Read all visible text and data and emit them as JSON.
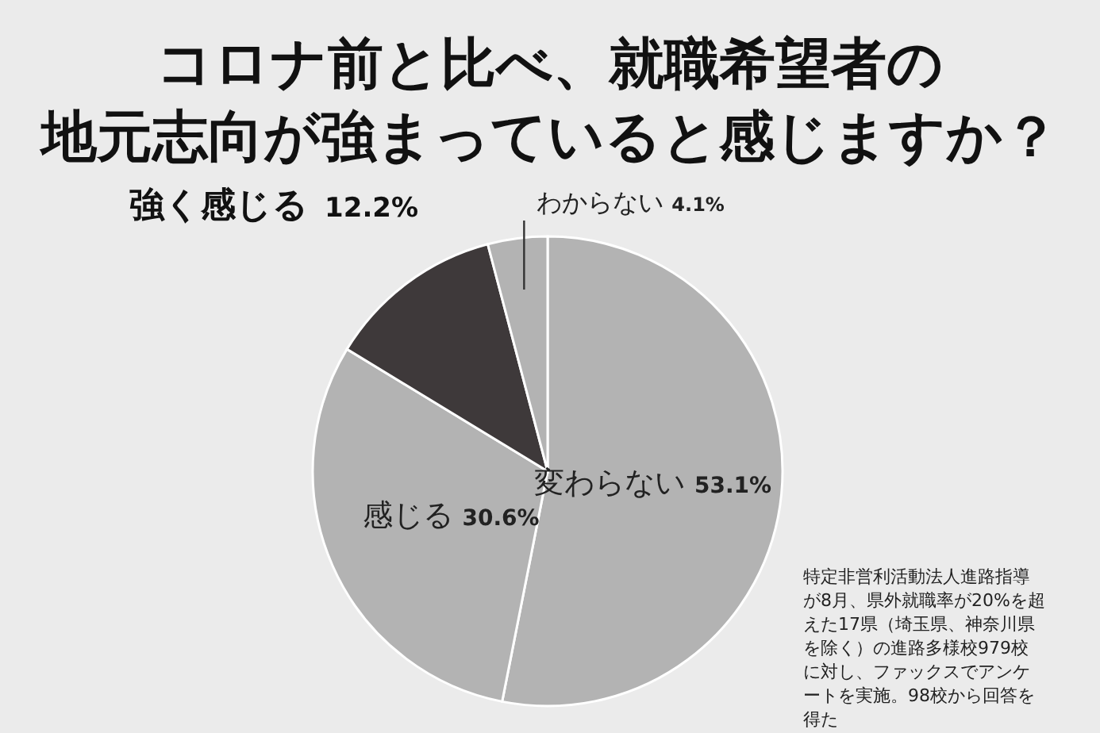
{
  "chart_data": {
    "type": "pie",
    "title": "コロナ前と比べ、就職希望者の地元志向が強まっていると感じますか？",
    "categories": [
      "変わらない",
      "感じる",
      "強く感じる",
      "わからない"
    ],
    "values": [
      53.1,
      30.6,
      12.2,
      4.1
    ],
    "value_labels": [
      "53.1%",
      "30.6%",
      "12.2%",
      "4.1%"
    ],
    "colors": [
      "#b3b3b3",
      "#b3b3b3",
      "#3e393a",
      "#b3b3b3"
    ],
    "annotations": [
      "特定非営利活動法人進路指導が8月、県外就職率が20%を超えた17県（埼玉県、神奈川県を除く）の進路多様校979校に対し、ファックスでアンケートを実施。98校から回答を得た"
    ]
  }
}
